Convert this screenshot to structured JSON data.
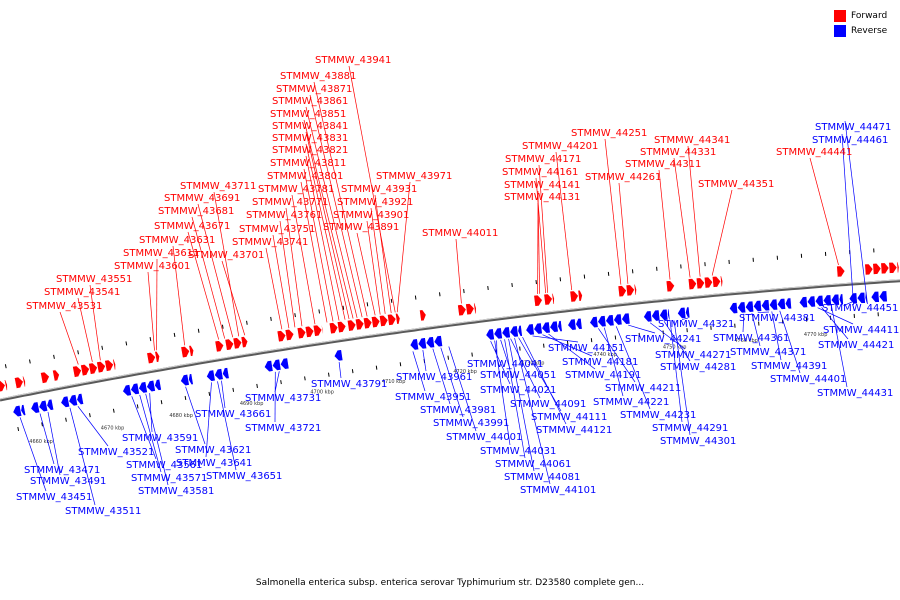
{
  "colors": {
    "forward": "#ff0000",
    "reverse": "#0000ff",
    "axis": "#888888"
  },
  "legend": {
    "forward_label": "Forward",
    "reverse_label": "Reverse"
  },
  "caption": "Salmonella enterica subsp. enterica serovar Typhimurium str. D23580 complete gen...",
  "axis": {
    "tick_labels": [
      "4660 kbp",
      "4670 kbp",
      "4680 kbp",
      "4690 kbp",
      "4700 kbp",
      "4710 kbp",
      "4720 kbp",
      "4730 kbp",
      "4740 kbp",
      "4750 kbp",
      "4760 kbp",
      "4770 kbp"
    ]
  },
  "forward_genes": [
    "STMMW_43531",
    "STMMW_43541",
    "STMMW_43551",
    "STMMW_43601",
    "STMMW_43611",
    "STMMW_43631",
    "STMMW_43671",
    "STMMW_43681",
    "STMMW_43691",
    "STMMW_43711",
    "STMMW_43701",
    "STMMW_43741",
    "STMMW_43751",
    "STMMW_43761",
    "STMMW_43771",
    "STMMW_43781",
    "STMMW_43801",
    "STMMW_43811",
    "STMMW_43821",
    "STMMW_43831",
    "STMMW_43841",
    "STMMW_43851",
    "STMMW_43861",
    "STMMW_43871",
    "STMMW_43881",
    "STMMW_43941",
    "STMMW_43891",
    "STMMW_43901",
    "STMMW_43921",
    "STMMW_43931",
    "STMMW_43971",
    "STMMW_44011",
    "STMMW_44131",
    "STMMW_44141",
    "STMMW_44161",
    "STMMW_44171",
    "STMMW_44201",
    "STMMW_44251",
    "STMMW_44261",
    "STMMW_44311",
    "STMMW_44331",
    "STMMW_44341",
    "STMMW_44351",
    "STMMW_44441"
  ],
  "reverse_genes": [
    "STMMW_43451",
    "STMMW_43471",
    "STMMW_43491",
    "STMMW_43511",
    "STMMW_43521",
    "STMMW_43561",
    "STMMW_43571",
    "STMMW_43581",
    "STMMW_43591",
    "STMMW_43621",
    "STMMW_43641",
    "STMMW_43651",
    "STMMW_43661",
    "STMMW_43721",
    "STMMW_43731",
    "STMMW_43791",
    "STMMW_43951",
    "STMMW_43961",
    "STMMW_43981",
    "STMMW_43991",
    "STMMW_44001",
    "STMMW_44021",
    "STMMW_44031",
    "STMMW_44041",
    "STMMW_44051",
    "STMMW_44061",
    "STMMW_44081",
    "STMMW_44091",
    "STMMW_44101",
    "STMMW_44111",
    "STMMW_44121",
    "STMMW_44151",
    "STMMW_44181",
    "STMMW_44191",
    "STMMW_44211",
    "STMMW_44221",
    "STMMW_44231",
    "STMMW_44241",
    "STMMW_44271",
    "STMMW_44281",
    "STMMW_44291",
    "STMMW_44301",
    "STMMW_44321",
    "STMMW_44361",
    "STMMW_44371",
    "STMMW_44381",
    "STMMW_44391",
    "STMMW_44401",
    "STMMW_44411",
    "STMMW_44421",
    "STMMW_44431",
    "STMMW_44451",
    "STMMW_44461",
    "STMMW_44471"
  ]
}
